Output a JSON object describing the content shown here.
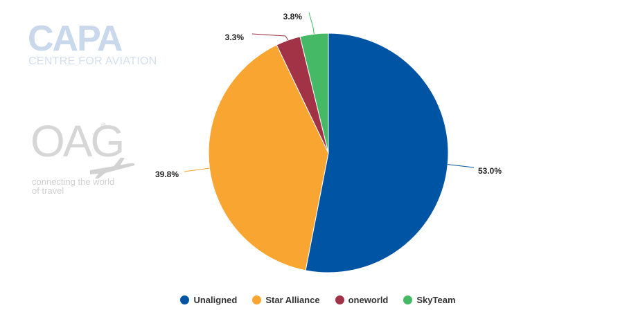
{
  "logos": {
    "capa": {
      "name": "CAPA",
      "subtitle": "CENTRE FOR AVIATION"
    },
    "oag": {
      "name": "OAG",
      "tagline": "connecting the world of travel"
    }
  },
  "colors": {
    "unaligned": "#0054a4",
    "star_alliance": "#f9a531",
    "oneworld": "#a23346",
    "skyteam": "#46b966"
  },
  "chart_data": {
    "type": "pie",
    "categories": [
      "Unaligned",
      "Star Alliance",
      "oneworld",
      "SkyTeam"
    ],
    "values": [
      53.0,
      39.8,
      3.3,
      3.8
    ],
    "data_labels": [
      "53.0%",
      "39.8%",
      "3.3%",
      "3.8%"
    ],
    "colors": [
      "#0054a4",
      "#f9a531",
      "#a23346",
      "#46b966"
    ],
    "legend_position": "bottom"
  },
  "legend": {
    "items": [
      {
        "label": "Unaligned",
        "color": "#0054a4"
      },
      {
        "label": "Star Alliance",
        "color": "#f9a531"
      },
      {
        "label": "oneworld",
        "color": "#a23346"
      },
      {
        "label": "SkyTeam",
        "color": "#46b966"
      }
    ]
  }
}
